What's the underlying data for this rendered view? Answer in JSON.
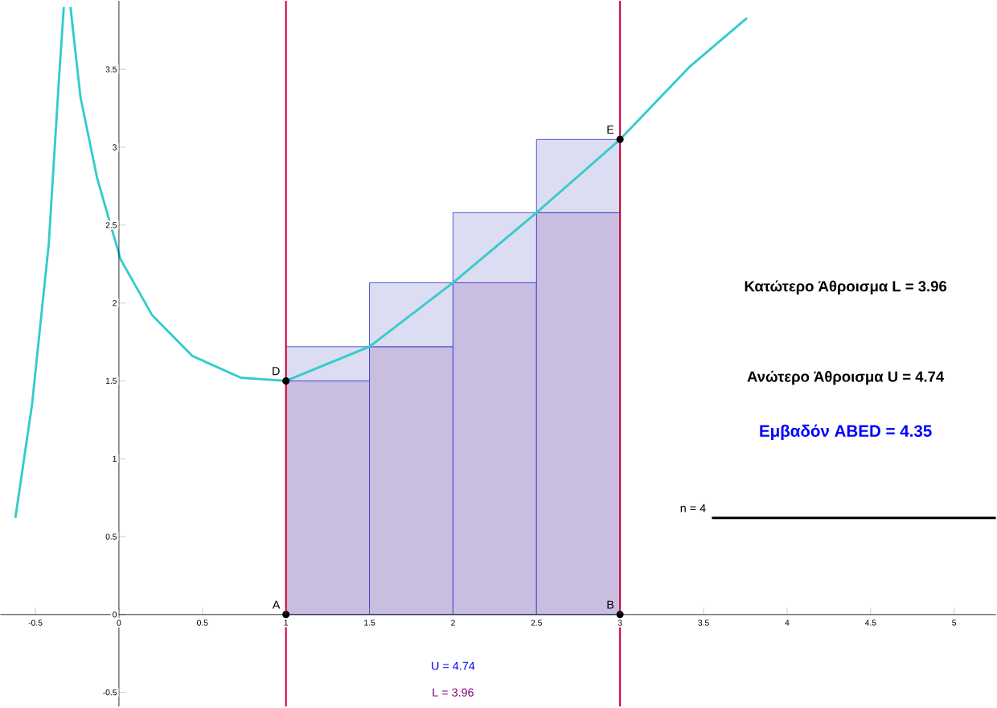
{
  "chart_data": {
    "type": "line",
    "stacked": true,
    "series": [
      {
        "color": "#33cccc",
        "x": [
          -0.62,
          -0.52,
          -0.42,
          -0.36,
          -0.33
        ],
        "values": [
          0.62,
          1.35,
          2.38,
          3.42,
          3.9
        ]
      },
      {
        "color": "#33cccc",
        "x": [
          -0.29,
          -0.23,
          -0.13,
          0.01,
          0.2,
          0.44,
          0.73,
          1,
          1.5,
          2,
          2.5,
          3,
          3.42,
          3.76
        ],
        "values": [
          3.9,
          3.32,
          2.8,
          2.28,
          1.92,
          1.66,
          1.52,
          1.5,
          1.72,
          2.13,
          2.58,
          3.05,
          3.52,
          3.83
        ]
      },
      {
        "type": "bar",
        "color": "#c9bde0",
        "x": [
          1.25,
          1.75,
          2.25,
          2.75
        ],
        "values": [
          1.5,
          1.72,
          2.13,
          2.58
        ]
      },
      {
        "type": "bar",
        "color": "#dcdcf2",
        "x": [
          1.25,
          1.75,
          2.25,
          2.75
        ],
        "values": [
          0.22,
          0.41,
          0.45,
          0.47
        ]
      },
      {
        "type": "scatter",
        "color": "#000000",
        "marker": "circle",
        "x": [
          1,
          3,
          1,
          3
        ],
        "values": [
          0,
          0,
          1.5,
          3.05
        ]
      },
      {
        "color": "#000000",
        "x": [
          3.55,
          5.25
        ],
        "values": [
          0.62,
          0.62
        ]
      }
    ],
    "ref_lines": [
      {
        "axis": "x",
        "value": 1,
        "color": "#cc0033"
      },
      {
        "axis": "x",
        "value": 3,
        "color": "#cc0033"
      }
    ],
    "annotations": [
      {
        "text": "A",
        "x": 1,
        "y": 0
      },
      {
        "text": "B",
        "x": 3,
        "y": 0
      },
      {
        "text": "D",
        "x": 1,
        "y": 1.5
      },
      {
        "text": "E",
        "x": 3,
        "y": 3.05
      },
      {
        "text": "n = 4",
        "x": 3.55,
        "y": 0.62
      },
      "Κατώτερο Άθροισμα  L = 3.96",
      "Ανώτερο Άθροισμα  U = 4.74",
      "Εμβαδόν ABED = 4.35",
      "U = 4.74",
      "L = 3.96"
    ],
    "xlim": [
      -0.71,
      5.25
    ],
    "ylim": [
      -0.59,
      3.94
    ],
    "xticks": [
      -0.5,
      0,
      0.5,
      1,
      1.5,
      2,
      2.5,
      3,
      3.5,
      4,
      4.5,
      5
    ],
    "yticks": [
      -0.5,
      0,
      0.5,
      1,
      1.5,
      2,
      2.5,
      3,
      3.5
    ],
    "grid": false
  }
}
